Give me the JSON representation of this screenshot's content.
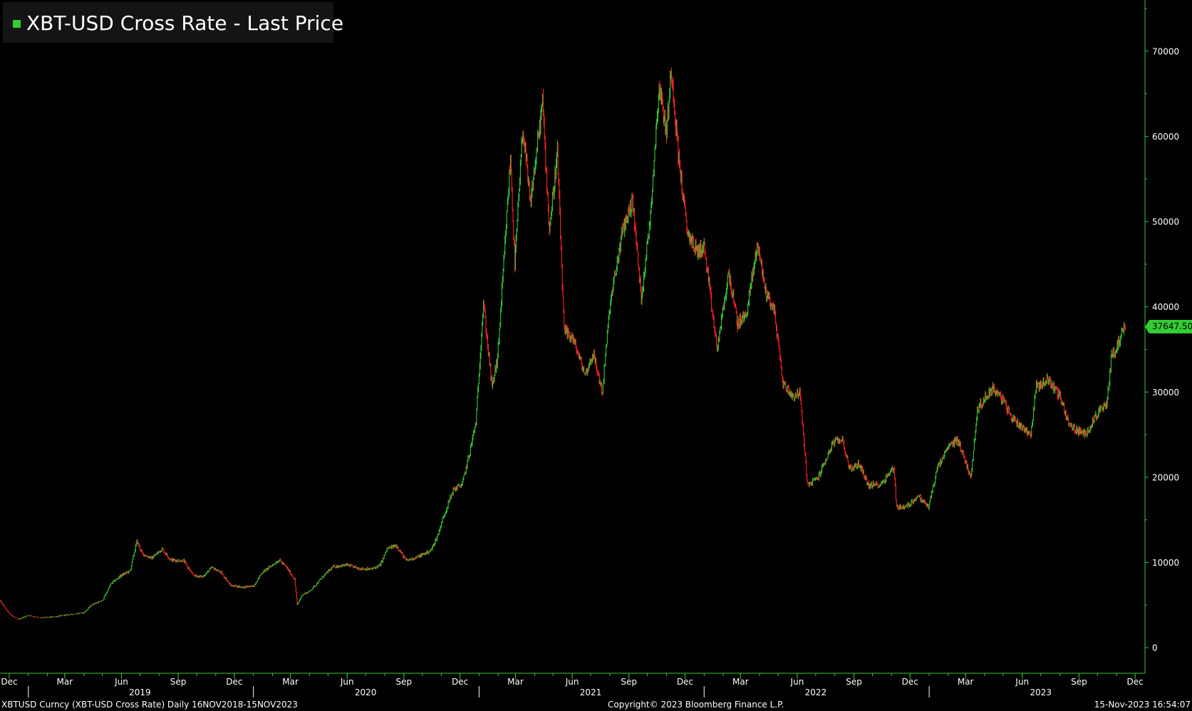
{
  "legend": {
    "label": "XBT-USD Cross Rate - Last Price",
    "color": "#33cc33"
  },
  "colors": {
    "up": "#33cc33",
    "down": "#ff2222",
    "axis": "#33cc33",
    "background": "#000000",
    "text": "#ffffff"
  },
  "last_price": {
    "label": "37647.50",
    "value": 37647.5
  },
  "footer": {
    "left": "XBTUSD Curncy (XBT-USD Cross Rate)  Daily 16NOV2018-15NOV2023",
    "center": "Copyright© 2023 Bloomberg Finance L.P.",
    "right": "15-Nov-2023 16:54:07"
  },
  "chart_data": {
    "type": "line",
    "title": "XBT-USD Cross Rate - Last Price",
    "xlabel": "",
    "ylabel": "",
    "ylim": [
      -3000,
      76000
    ],
    "grid": false,
    "legend_position": "top-left",
    "y_ticks": [
      0,
      10000,
      20000,
      30000,
      40000,
      50000,
      60000,
      70000
    ],
    "x_month_ticks": [
      {
        "label": "Dec",
        "date": "2018-12-01"
      },
      {
        "label": "Mar",
        "date": "2019-03-01"
      },
      {
        "label": "Jun",
        "date": "2019-06-01"
      },
      {
        "label": "Sep",
        "date": "2019-09-01"
      },
      {
        "label": "Dec",
        "date": "2019-12-01"
      },
      {
        "label": "Mar",
        "date": "2020-03-01"
      },
      {
        "label": "Jun",
        "date": "2020-06-01"
      },
      {
        "label": "Sep",
        "date": "2020-09-01"
      },
      {
        "label": "Dec",
        "date": "2020-12-01"
      },
      {
        "label": "Mar",
        "date": "2021-03-01"
      },
      {
        "label": "Jun",
        "date": "2021-06-01"
      },
      {
        "label": "Sep",
        "date": "2021-09-01"
      },
      {
        "label": "Dec",
        "date": "2021-12-01"
      },
      {
        "label": "Mar",
        "date": "2022-03-01"
      },
      {
        "label": "Jun",
        "date": "2022-06-01"
      },
      {
        "label": "Sep",
        "date": "2022-09-01"
      },
      {
        "label": "Dec",
        "date": "2022-12-01"
      },
      {
        "label": "Mar",
        "date": "2023-03-01"
      },
      {
        "label": "Jun",
        "date": "2023-06-01"
      },
      {
        "label": "Sep",
        "date": "2023-09-01"
      },
      {
        "label": "Dec",
        "date": "2023-12-01"
      }
    ],
    "x_year_labels": [
      {
        "label": "2019",
        "date": "2019-07-01"
      },
      {
        "label": "2020",
        "date": "2020-07-01"
      },
      {
        "label": "2021",
        "date": "2021-07-01"
      },
      {
        "label": "2022",
        "date": "2022-07-01"
      },
      {
        "label": "2023",
        "date": "2023-07-01"
      }
    ],
    "x_year_dividers": [
      "2019-01-01",
      "2020-01-01",
      "2021-01-01",
      "2022-01-01",
      "2023-01-01"
    ],
    "x_range": [
      "2018-11-16",
      "2023-12-17"
    ],
    "series": [
      {
        "points": [
          [
            "2018-11-16",
            5500
          ],
          [
            "2018-12-01",
            4000
          ],
          [
            "2018-12-15",
            3300
          ],
          [
            "2019-01-01",
            3800
          ],
          [
            "2019-01-20",
            3500
          ],
          [
            "2019-02-10",
            3600
          ],
          [
            "2019-03-01",
            3800
          ],
          [
            "2019-04-01",
            4100
          ],
          [
            "2019-04-15",
            5100
          ],
          [
            "2019-05-01",
            5500
          ],
          [
            "2019-05-15",
            7500
          ],
          [
            "2019-06-01",
            8500
          ],
          [
            "2019-06-15",
            9000
          ],
          [
            "2019-06-26",
            12500
          ],
          [
            "2019-07-05",
            11000
          ],
          [
            "2019-07-20",
            10500
          ],
          [
            "2019-08-06",
            11600
          ],
          [
            "2019-08-20",
            10300
          ],
          [
            "2019-09-10",
            10200
          ],
          [
            "2019-09-25",
            8500
          ],
          [
            "2019-10-10",
            8300
          ],
          [
            "2019-10-26",
            9400
          ],
          [
            "2019-11-10",
            8800
          ],
          [
            "2019-11-25",
            7300
          ],
          [
            "2019-12-15",
            7100
          ],
          [
            "2020-01-01",
            7200
          ],
          [
            "2020-01-15",
            8800
          ],
          [
            "2020-02-12",
            10300
          ],
          [
            "2020-02-25",
            9300
          ],
          [
            "2020-03-08",
            8000
          ],
          [
            "2020-03-12",
            5000
          ],
          [
            "2020-03-20",
            6200
          ],
          [
            "2020-04-01",
            6600
          ],
          [
            "2020-04-29",
            8800
          ],
          [
            "2020-05-10",
            9500
          ],
          [
            "2020-06-01",
            9700
          ],
          [
            "2020-06-20",
            9300
          ],
          [
            "2020-07-10",
            9200
          ],
          [
            "2020-07-25",
            9700
          ],
          [
            "2020-08-05",
            11600
          ],
          [
            "2020-08-20",
            12000
          ],
          [
            "2020-09-05",
            10200
          ],
          [
            "2020-09-25",
            10700
          ],
          [
            "2020-10-15",
            11400
          ],
          [
            "2020-10-25",
            13000
          ],
          [
            "2020-11-05",
            15500
          ],
          [
            "2020-11-20",
            18500
          ],
          [
            "2020-12-05",
            19200
          ],
          [
            "2020-12-17",
            23000
          ],
          [
            "2020-12-27",
            26500
          ],
          [
            "2021-01-08",
            40500
          ],
          [
            "2021-01-22",
            30500
          ],
          [
            "2021-01-31",
            34000
          ],
          [
            "2021-02-10",
            45000
          ],
          [
            "2021-02-21",
            57500
          ],
          [
            "2021-02-28",
            45000
          ],
          [
            "2021-03-13",
            61000
          ],
          [
            "2021-03-25",
            52000
          ],
          [
            "2021-04-14",
            64000
          ],
          [
            "2021-04-25",
            49000
          ],
          [
            "2021-05-08",
            58000
          ],
          [
            "2021-05-19",
            37000
          ],
          [
            "2021-06-01",
            36500
          ],
          [
            "2021-06-22",
            32000
          ],
          [
            "2021-07-05",
            34500
          ],
          [
            "2021-07-20",
            30000
          ],
          [
            "2021-08-01",
            40000
          ],
          [
            "2021-08-22",
            49000
          ],
          [
            "2021-09-07",
            52500
          ],
          [
            "2021-09-21",
            41000
          ],
          [
            "2021-10-05",
            50000
          ],
          [
            "2021-10-20",
            66000
          ],
          [
            "2021-11-01",
            60500
          ],
          [
            "2021-11-09",
            68000
          ],
          [
            "2021-11-20",
            58000
          ],
          [
            "2021-12-04",
            49000
          ],
          [
            "2021-12-20",
            46500
          ],
          [
            "2022-01-01",
            47000
          ],
          [
            "2022-01-22",
            35000
          ],
          [
            "2022-02-10",
            44000
          ],
          [
            "2022-02-24",
            38000
          ],
          [
            "2022-03-10",
            39000
          ],
          [
            "2022-03-29",
            47500
          ],
          [
            "2022-04-10",
            42000
          ],
          [
            "2022-04-25",
            39500
          ],
          [
            "2022-05-09",
            31000
          ],
          [
            "2022-05-25",
            29500
          ],
          [
            "2022-06-05",
            30000
          ],
          [
            "2022-06-18",
            19000
          ],
          [
            "2022-07-05",
            20000
          ],
          [
            "2022-07-29",
            24000
          ],
          [
            "2022-08-13",
            24500
          ],
          [
            "2022-08-25",
            21000
          ],
          [
            "2022-09-10",
            21500
          ],
          [
            "2022-09-25",
            19000
          ],
          [
            "2022-10-15",
            19200
          ],
          [
            "2022-11-05",
            21200
          ],
          [
            "2022-11-09",
            16500
          ],
          [
            "2022-11-25",
            16500
          ],
          [
            "2022-12-14",
            17800
          ],
          [
            "2022-12-31",
            16500
          ],
          [
            "2023-01-14",
            21000
          ],
          [
            "2023-02-01",
            23500
          ],
          [
            "2023-02-16",
            24500
          ],
          [
            "2023-03-10",
            20000
          ],
          [
            "2023-03-20",
            28000
          ],
          [
            "2023-04-14",
            30500
          ],
          [
            "2023-05-01",
            29000
          ],
          [
            "2023-05-15",
            27000
          ],
          [
            "2023-06-15",
            25000
          ],
          [
            "2023-06-23",
            30500
          ],
          [
            "2023-07-13",
            31500
          ],
          [
            "2023-08-01",
            29500
          ],
          [
            "2023-08-17",
            26000
          ],
          [
            "2023-09-11",
            25000
          ],
          [
            "2023-10-01",
            27500
          ],
          [
            "2023-10-16",
            28500
          ],
          [
            "2023-10-24",
            34500
          ],
          [
            "2023-11-01",
            35000
          ],
          [
            "2023-11-09",
            37000
          ],
          [
            "2023-11-15",
            37647.5
          ]
        ]
      }
    ]
  }
}
